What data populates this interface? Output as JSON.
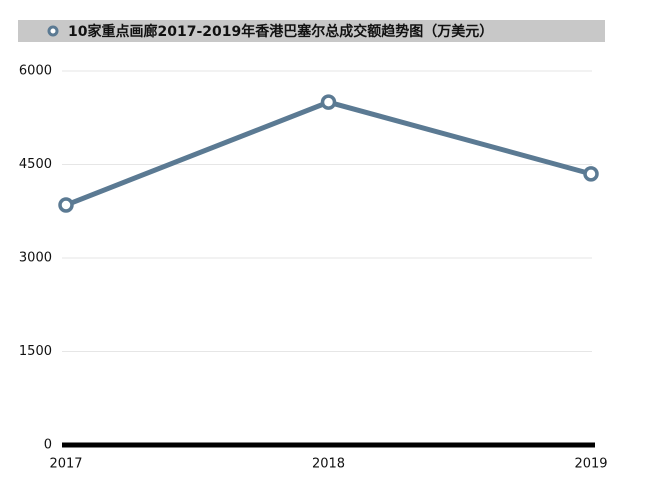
{
  "chart_data": {
    "type": "line",
    "categories": [
      "2017",
      "2018",
      "2019"
    ],
    "series": [
      {
        "name": "10家重点画廊2017-2019年香港巴塞尔总成交额趋势图（万美元）",
        "color": "#5b7a93",
        "values": [
          3850,
          5500,
          4350
        ]
      }
    ],
    "ylim": [
      0,
      6000
    ],
    "yticks": [
      0,
      1500,
      3000,
      4500,
      6000
    ],
    "grid": true
  }
}
